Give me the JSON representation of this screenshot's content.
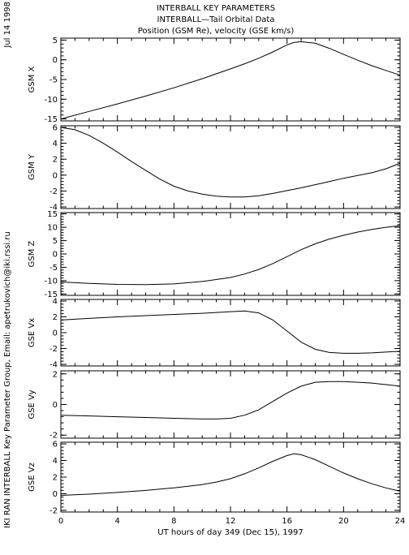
{
  "header": {
    "line1": "INTERBALL KEY PARAMETERS",
    "line2": "INTERBALL—Tail Orbital Data",
    "line3": "Position (GSM Re), velocity (GSE km/s)"
  },
  "side": {
    "date": "Jul 14 1998",
    "credit": "IKI RAN INTERBALL Key Parameter Group, Email: apetrukovich@iki.rssi.ru"
  },
  "chart_data": [
    {
      "type": "line",
      "ylabel": "GSM X",
      "xlim": [
        0,
        24
      ],
      "ylim": [
        -15.5,
        5.5
      ],
      "yticks": [
        -15,
        -10,
        -5,
        0,
        5
      ],
      "series": [
        {
          "x": [
            0,
            2,
            4,
            6,
            8,
            10,
            12,
            13,
            14,
            15,
            16,
            16.5,
            17,
            18,
            19,
            20,
            21,
            22,
            23,
            24
          ],
          "values": [
            -15,
            -13.1,
            -11.2,
            -9.2,
            -7.1,
            -4.8,
            -2.3,
            -1.0,
            0.4,
            2.0,
            3.8,
            4.4,
            4.6,
            4.2,
            2.9,
            1.4,
            -0.1,
            -1.5,
            -2.7,
            -3.9
          ]
        }
      ]
    },
    {
      "type": "line",
      "ylabel": "GSM Y",
      "xlim": [
        0,
        24
      ],
      "ylim": [
        -4.2,
        6.2
      ],
      "yticks": [
        -4,
        -2,
        0,
        2,
        4,
        6
      ],
      "series": [
        {
          "x": [
            0,
            1,
            2,
            3,
            4,
            5,
            6,
            7,
            8,
            9,
            10,
            11,
            12,
            13,
            14,
            15,
            16,
            17,
            18,
            19,
            20,
            21,
            22,
            23,
            24
          ],
          "values": [
            6.0,
            5.7,
            5.0,
            4.0,
            2.9,
            1.7,
            0.6,
            -0.5,
            -1.4,
            -2.0,
            -2.4,
            -2.65,
            -2.75,
            -2.75,
            -2.6,
            -2.3,
            -1.95,
            -1.6,
            -1.2,
            -0.8,
            -0.4,
            -0.05,
            0.3,
            0.8,
            1.5
          ]
        }
      ]
    },
    {
      "type": "line",
      "ylabel": "GSM Z",
      "xlim": [
        0,
        24
      ],
      "ylim": [
        -15.5,
        15.5
      ],
      "yticks": [
        -15,
        -10,
        -5,
        0,
        5,
        10,
        15
      ],
      "series": [
        {
          "x": [
            0,
            2,
            4,
            6,
            8,
            10,
            12,
            13,
            14,
            15,
            16,
            17,
            18,
            19,
            20,
            21,
            22,
            23,
            24
          ],
          "values": [
            -10.5,
            -11.0,
            -11.4,
            -11.5,
            -11.2,
            -10.3,
            -8.8,
            -7.5,
            -5.8,
            -3.6,
            -1.0,
            1.6,
            3.8,
            5.6,
            7.0,
            8.2,
            9.2,
            10.0,
            10.6
          ]
        }
      ]
    },
    {
      "type": "line",
      "ylabel": "GSE Vx",
      "xlim": [
        0,
        24
      ],
      "ylim": [
        -4.2,
        4.2
      ],
      "yticks": [
        -4,
        -2,
        0,
        2,
        4
      ],
      "series": [
        {
          "x": [
            0,
            2,
            4,
            6,
            8,
            10,
            12,
            13,
            14,
            15,
            16,
            17,
            18,
            19,
            20,
            21,
            22,
            23,
            24
          ],
          "values": [
            1.6,
            1.8,
            2.0,
            2.15,
            2.3,
            2.45,
            2.65,
            2.75,
            2.5,
            1.6,
            0.2,
            -1.2,
            -2.1,
            -2.5,
            -2.6,
            -2.6,
            -2.55,
            -2.45,
            -2.35
          ]
        }
      ]
    },
    {
      "type": "line",
      "ylabel": "GSE Vy",
      "xlim": [
        0,
        24
      ],
      "ylim": [
        -2.2,
        2.2
      ],
      "yticks": [
        -2,
        0,
        2
      ],
      "series": [
        {
          "x": [
            0,
            2,
            4,
            6,
            8,
            10,
            11,
            12,
            13,
            14,
            15,
            16,
            17,
            18,
            19,
            20,
            21,
            22,
            23,
            24
          ],
          "values": [
            -0.7,
            -0.75,
            -0.8,
            -0.85,
            -0.9,
            -0.95,
            -0.95,
            -0.9,
            -0.7,
            -0.35,
            0.2,
            0.75,
            1.2,
            1.45,
            1.5,
            1.5,
            1.45,
            1.4,
            1.3,
            1.2
          ]
        }
      ]
    },
    {
      "type": "line",
      "ylabel": "GSE Vz",
      "xlim": [
        0,
        24
      ],
      "ylim": [
        -2.2,
        6.2
      ],
      "yticks": [
        -2,
        0,
        2,
        4,
        6
      ],
      "xticks": [
        0,
        4,
        8,
        12,
        16,
        20,
        24
      ],
      "xlabel": "UT hours of day 349 (Dec 15), 1997",
      "series": [
        {
          "x": [
            0,
            2,
            4,
            6,
            8,
            10,
            11,
            12,
            13,
            14,
            15,
            16,
            16.5,
            17,
            18,
            19,
            20,
            21,
            22,
            23,
            24
          ],
          "values": [
            -0.2,
            -0.05,
            0.15,
            0.4,
            0.7,
            1.1,
            1.4,
            1.8,
            2.4,
            3.1,
            3.9,
            4.6,
            4.8,
            4.7,
            4.1,
            3.3,
            2.5,
            1.8,
            1.2,
            0.7,
            0.3
          ]
        }
      ]
    }
  ]
}
